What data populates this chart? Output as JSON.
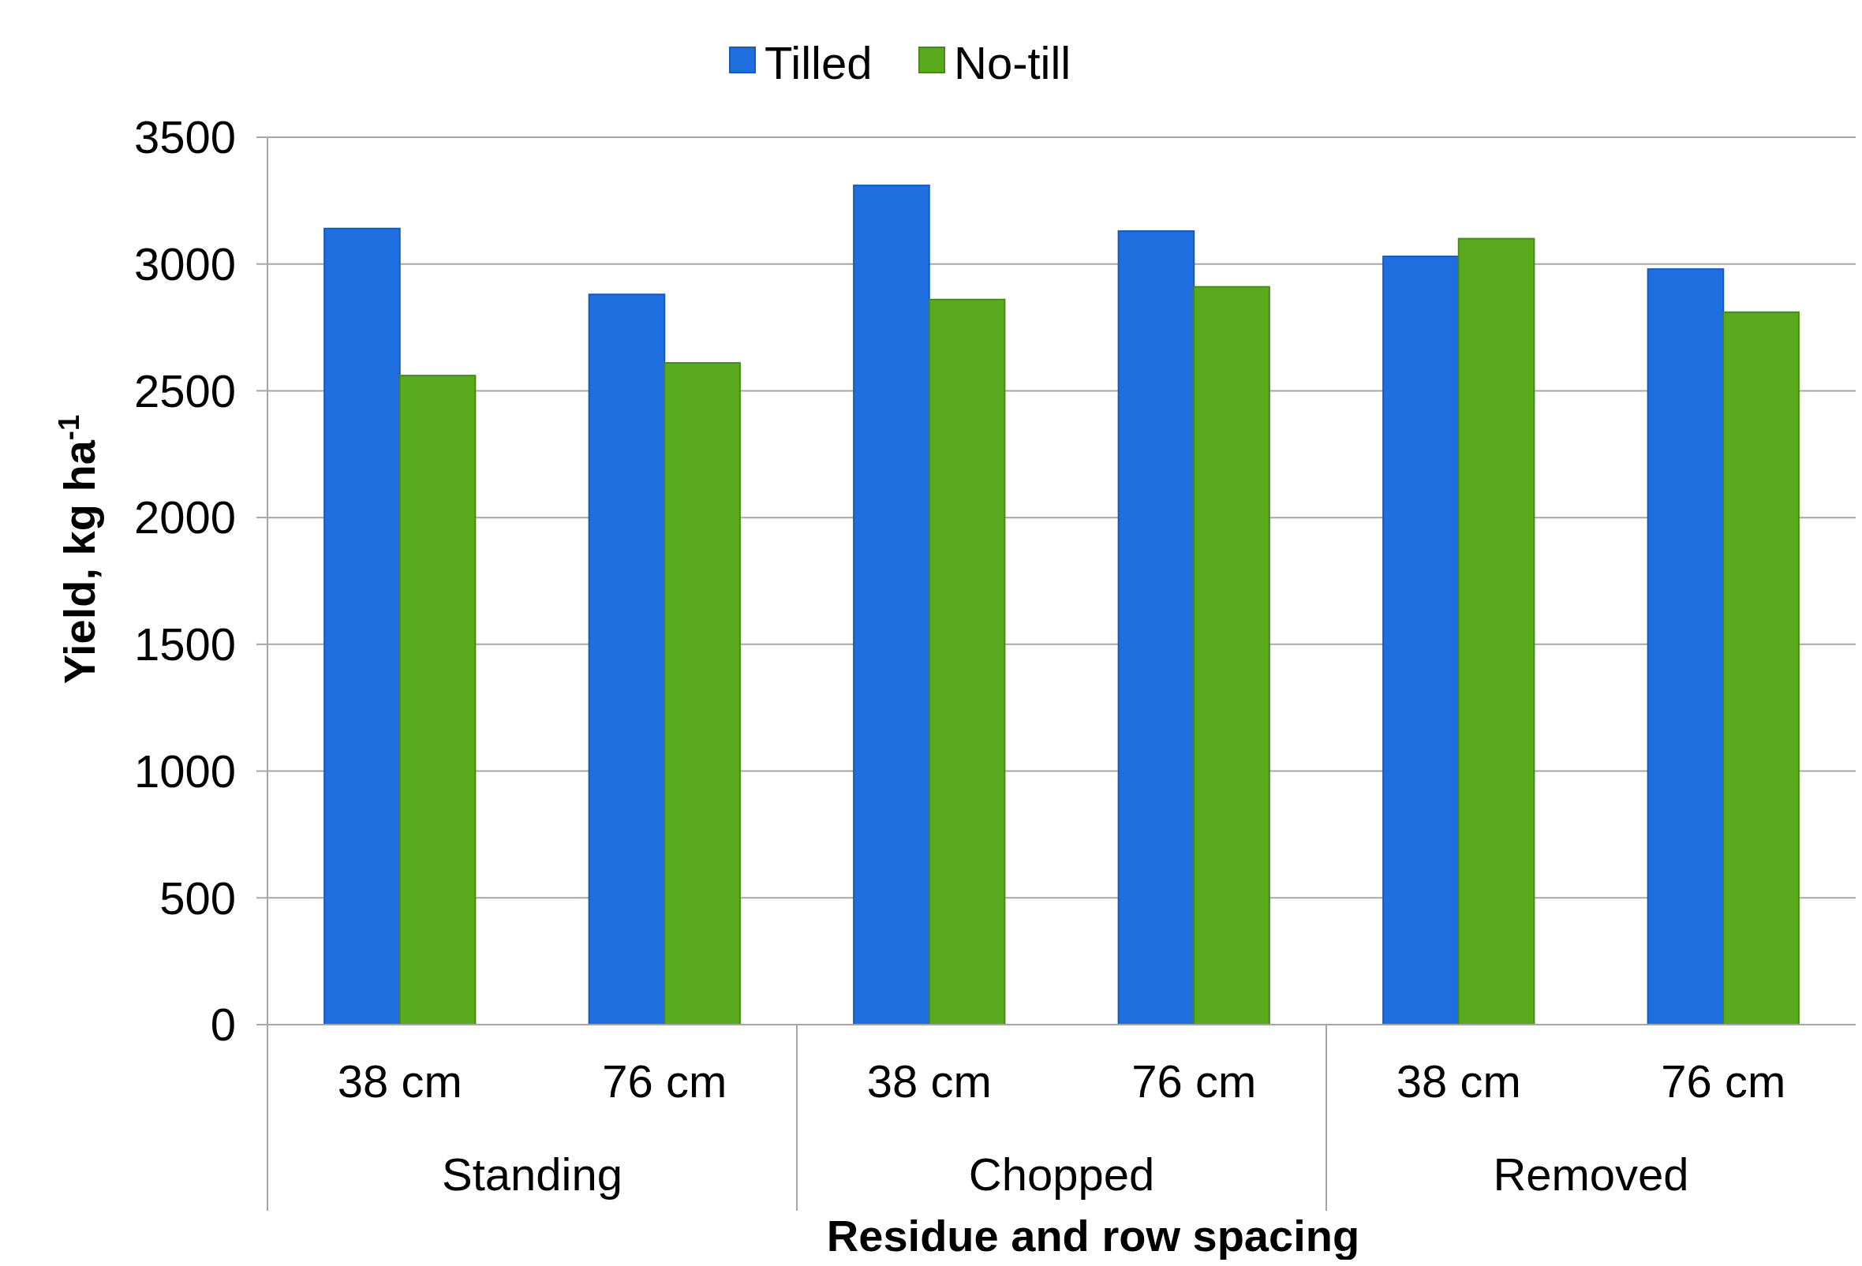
{
  "chart_data": {
    "type": "bar",
    "xlabel": "Residue and row spacing",
    "ylabel": "Yield, kg ha$^{-1}$",
    "categories": [
      "38 cm",
      "76 cm",
      "38 cm",
      "76 cm",
      "38 cm",
      "76 cm"
    ],
    "annotations": [
      "Standing",
      "Chopped",
      "Removed"
    ],
    "series": [
      {
        "name": "Tilled",
        "color": "#1f6fe0",
        "values": [
          3140,
          2880,
          3310,
          3130,
          3030,
          2980
        ]
      },
      {
        "name": "No-till",
        "color": "#5aaa1e",
        "values": [
          2560,
          2610,
          2860,
          2910,
          3100,
          2810
        ]
      }
    ],
    "ylim": [
      0,
      3500
    ],
    "yticks": [
      0,
      500,
      1000,
      1500,
      2000,
      2500,
      3000,
      3500
    ],
    "grid": "y",
    "legend": "top"
  }
}
